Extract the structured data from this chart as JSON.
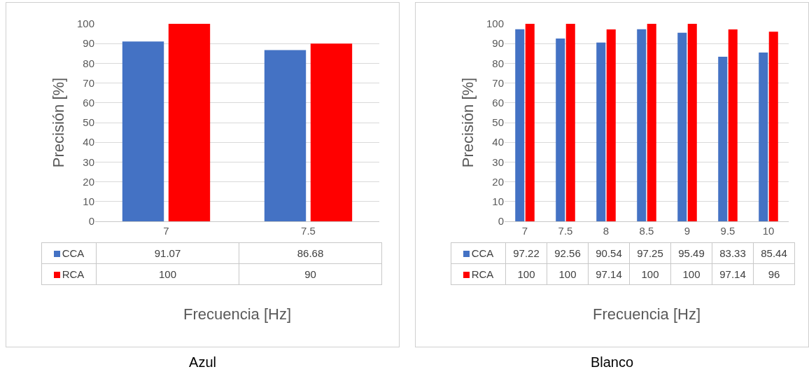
{
  "chart_data": [
    {
      "type": "bar",
      "title": "Azul",
      "xlabel": "Frecuencia [Hz]",
      "ylabel": "Precisión [%]",
      "categories": [
        "7",
        "7.5"
      ],
      "series": [
        {
          "name": "CCA",
          "color": "#4472c4",
          "values": [
            91.07,
            86.68
          ]
        },
        {
          "name": "RCA",
          "color": "#ff0000",
          "values": [
            100,
            90
          ]
        }
      ],
      "ylim": [
        0,
        100
      ],
      "yticks": [
        0,
        10,
        20,
        30,
        40,
        50,
        60,
        70,
        80,
        90,
        100
      ],
      "grid": "y",
      "legend": "bottom",
      "data_labels": true
    },
    {
      "type": "bar",
      "title": "Blanco",
      "xlabel": "Frecuencia [Hz]",
      "ylabel": "Precisión [%]",
      "categories": [
        "7",
        "7.5",
        "8",
        "8.5",
        "9",
        "9.5",
        "10"
      ],
      "series": [
        {
          "name": "CCA",
          "color": "#4472c4",
          "values": [
            97.22,
            92.56,
            90.54,
            97.25,
            95.49,
            83.33,
            85.44
          ]
        },
        {
          "name": "RCA",
          "color": "#ff0000",
          "values": [
            100,
            100,
            97.14,
            100,
            100,
            97.14,
            96
          ]
        }
      ],
      "ylim": [
        0,
        100
      ],
      "yticks": [
        0,
        10,
        20,
        30,
        40,
        50,
        60,
        70,
        80,
        90,
        100
      ],
      "grid": "y",
      "legend": "bottom",
      "data_labels": true
    }
  ]
}
